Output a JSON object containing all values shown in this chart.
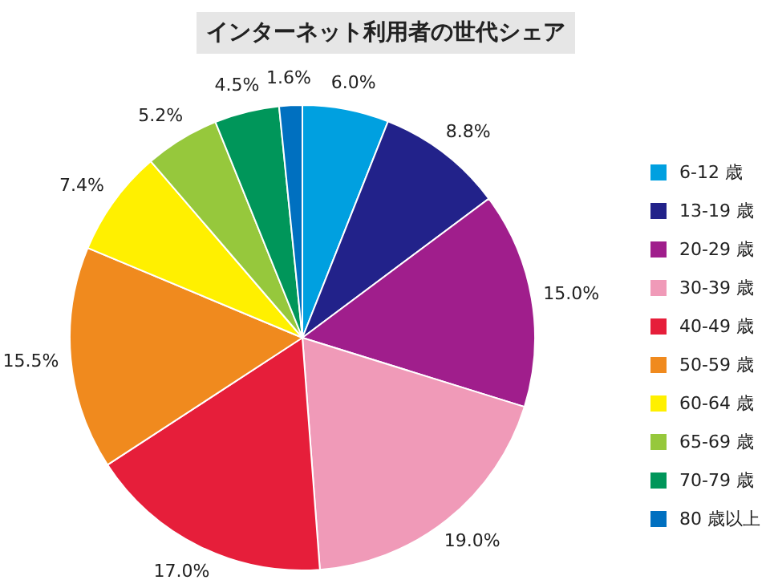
{
  "chart_data": {
    "type": "pie",
    "title": "インターネット利用者の世代シェア",
    "categories": [
      "6-12 歳",
      "13-19 歳",
      "20-29 歳",
      "30-39 歳",
      "40-49 歳",
      "50-59 歳",
      "60-64 歳",
      "65-69 歳",
      "70-79 歳",
      "80 歳以上"
    ],
    "values": [
      6.0,
      8.8,
      15.0,
      19.0,
      17.0,
      15.5,
      7.4,
      5.2,
      4.5,
      1.6
    ],
    "colors": [
      "#00a0e0",
      "#22228a",
      "#a01e8c",
      "#f09ab8",
      "#e61e3a",
      "#f08a1e",
      "#fff000",
      "#96c83c",
      "#00965a",
      "#0070c0"
    ],
    "value_labels": [
      "6.0%",
      "8.8%",
      "15.0%",
      "19.0%",
      "17.0%",
      "15.5%",
      "7.4%",
      "5.2%",
      "4.5%",
      "1.6%"
    ],
    "legend": "right"
  }
}
